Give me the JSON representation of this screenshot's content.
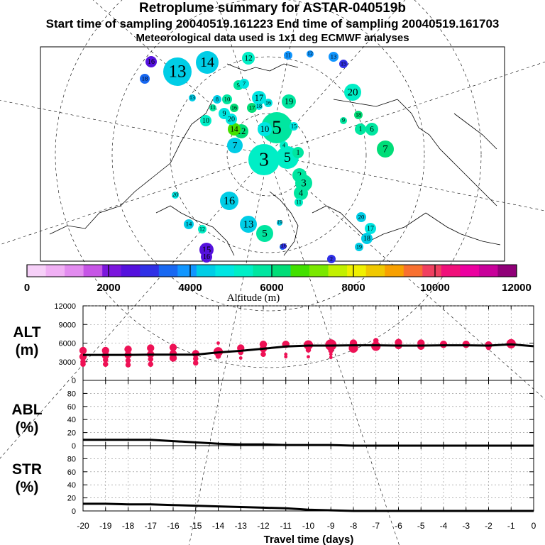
{
  "header": {
    "title": "Retroplume summary for ASTAR-040519b",
    "sampling": "Start time of sampling 20040519.161223     End time of sampling 20040519.161703",
    "met": "Meteorological data used is 1x1 deg ECMWF analyses"
  },
  "chart_data": [
    {
      "type": "scatter",
      "name": "retroplume-map",
      "description_labels": "cluster markers labeled with travel day",
      "clusters": [
        {
          "day": 14,
          "alt": 4600,
          "size": 3
        },
        {
          "day": 13,
          "alt": 4500,
          "size": 1
        },
        {
          "day": 12,
          "alt": 5600,
          "size": 2
        },
        {
          "day": 11,
          "alt": 4300,
          "size": 0
        },
        {
          "day": 12,
          "alt": 4200,
          "size": 0
        },
        {
          "day": 13,
          "alt": 4200,
          "size": 0
        },
        {
          "day": 15,
          "alt": 3000,
          "size": 1
        },
        {
          "day": 16,
          "alt": 2600,
          "size": 1
        },
        {
          "day": 18,
          "alt": 3600,
          "size": 1
        },
        {
          "day": 13,
          "alt": 4800,
          "size": 2
        },
        {
          "day": 9,
          "alt": 6000,
          "size": 0
        },
        {
          "day": 7,
          "alt": 5000,
          "size": 0
        },
        {
          "day": 8,
          "alt": 4600,
          "size": 0
        },
        {
          "day": 10,
          "alt": 6400,
          "size": 1
        },
        {
          "day": 11,
          "alt": 6300,
          "size": 1
        },
        {
          "day": 16,
          "alt": 6600,
          "size": 0
        },
        {
          "day": 17,
          "alt": 6800,
          "size": 0
        },
        {
          "day": 10,
          "alt": 5800,
          "size": 1
        },
        {
          "day": 17,
          "alt": 5400,
          "size": 2
        },
        {
          "day": 19,
          "alt": 6400,
          "size": 0
        },
        {
          "day": 20,
          "alt": 5500,
          "size": 0
        },
        {
          "day": 18,
          "alt": 6700,
          "size": 1
        },
        {
          "day": 9,
          "alt": 6200,
          "size": 3
        },
        {
          "day": 1,
          "alt": 6300,
          "size": 0
        },
        {
          "day": 6,
          "alt": 6200,
          "size": 1
        },
        {
          "day": 7,
          "alt": 6700,
          "size": 1
        },
        {
          "day": 5,
          "alt": 6300,
          "size": 1
        },
        {
          "day": 10,
          "alt": 5200,
          "size": 1
        },
        {
          "day": 12,
          "alt": 6500,
          "size": 0
        },
        {
          "day": 14,
          "alt": 7200,
          "size": 0
        },
        {
          "day": 15,
          "alt": 5300,
          "size": 0
        },
        {
          "day": 18,
          "alt": 5000,
          "size": 0
        },
        {
          "day": 16,
          "alt": 5200,
          "size": 1
        },
        {
          "day": 9,
          "alt": 5300,
          "size": 1
        },
        {
          "day": 20,
          "alt": 5400,
          "size": 2
        },
        {
          "day": 7,
          "alt": 4700,
          "size": 3
        },
        {
          "day": 3,
          "alt": 5500,
          "size": 3
        },
        {
          "day": 5,
          "alt": 5800,
          "size": 0
        },
        {
          "day": 4,
          "alt": 5900,
          "size": 1
        },
        {
          "day": 1,
          "alt": 6200,
          "size": 2
        },
        {
          "day": 2,
          "alt": 6200,
          "size": 0
        },
        {
          "day": 3,
          "alt": 6000,
          "size": 1
        },
        {
          "day": 4,
          "alt": 6000,
          "size": 0
        },
        {
          "day": 11,
          "alt": 5700,
          "size": 2
        },
        {
          "day": 16,
          "alt": 4700,
          "size": 0
        },
        {
          "day": 20,
          "alt": 5300,
          "size": 0
        },
        {
          "day": 14,
          "alt": 4800,
          "size": 0
        },
        {
          "day": 12,
          "alt": 5600,
          "size": 2
        },
        {
          "day": 13,
          "alt": 4600,
          "size": 2
        },
        {
          "day": 5,
          "alt": 6400,
          "size": 0
        },
        {
          "day": 19,
          "alt": 4600,
          "size": 1
        },
        {
          "day": 20,
          "alt": 4600,
          "size": 0
        },
        {
          "day": 17,
          "alt": 5000,
          "size": 1
        },
        {
          "day": 18,
          "alt": 4900,
          "size": 1
        },
        {
          "day": 19,
          "alt": 4700,
          "size": 1
        },
        {
          "day": 14,
          "alt": 3500,
          "size": 0
        },
        {
          "day": 16,
          "alt": 3200,
          "size": 0
        },
        {
          "day": 2,
          "alt": 3300,
          "size": 0
        },
        {
          "day": 15,
          "alt": 2700,
          "size": 1
        },
        {
          "day": 16,
          "alt": 2900,
          "size": 1
        }
      ]
    },
    {
      "type": "colorbar",
      "name": "altitude-colorbar",
      "xlabel": "Altitude (m)",
      "range": [
        0,
        12000
      ],
      "step": 500,
      "tick_labels": [
        "0",
        "2000",
        "4000",
        "6000",
        "8000",
        "10000",
        "12000"
      ],
      "colors": [
        "#f6d0f8",
        "#f0b0f4",
        "#e28cef",
        "#c655e6",
        "#7b16dd",
        "#5511dd",
        "#3030e6",
        "#1868f1",
        "#1096ff",
        "#00cde6",
        "#00e6e2",
        "#00eec6",
        "#00e6a0",
        "#00dd78",
        "#42e000",
        "#7ae800",
        "#c2f000",
        "#f0f000",
        "#f0c800",
        "#f8a000",
        "#f87030",
        "#f04060",
        "#f0107a",
        "#ec00a0",
        "#c8009a",
        "#900078"
      ]
    },
    {
      "type": "line",
      "name": "alt-panel",
      "label_line1": "ALT",
      "label_line2": "(m)",
      "ylim": [
        0,
        12000
      ],
      "yticks": [
        "0",
        "3000",
        "6000",
        "9000",
        "12000"
      ],
      "x": [
        -20,
        -19,
        -18,
        -17,
        -16,
        -15,
        -14,
        -13,
        -12,
        -11,
        -10,
        -9,
        -8,
        -7,
        -6,
        -5,
        -4,
        -3,
        -2,
        -1,
        0
      ],
      "values": [
        4100,
        4100,
        4100,
        4150,
        4150,
        4150,
        4500,
        4750,
        5100,
        5450,
        5600,
        5600,
        5650,
        5650,
        5600,
        5600,
        5650,
        5650,
        5600,
        5800,
        5500
      ],
      "dots": [
        {
          "x": -20,
          "y": 4800,
          "s": 3
        },
        {
          "x": -20,
          "y": 3800,
          "s": 3
        },
        {
          "x": -20,
          "y": 3000,
          "s": 2
        },
        {
          "x": -20,
          "y": 2600,
          "s": 2
        },
        {
          "x": -19,
          "y": 4800,
          "s": 3
        },
        {
          "x": -19,
          "y": 4000,
          "s": 3
        },
        {
          "x": -19,
          "y": 3300,
          "s": 2
        },
        {
          "x": -19,
          "y": 2600,
          "s": 2
        },
        {
          "x": -18,
          "y": 5000,
          "s": 3
        },
        {
          "x": -18,
          "y": 4100,
          "s": 3
        },
        {
          "x": -18,
          "y": 3200,
          "s": 2
        },
        {
          "x": -18,
          "y": 2500,
          "s": 2
        },
        {
          "x": -17,
          "y": 5200,
          "s": 3
        },
        {
          "x": -17,
          "y": 4200,
          "s": 3
        },
        {
          "x": -17,
          "y": 3400,
          "s": 2
        },
        {
          "x": -17,
          "y": 2600,
          "s": 2
        },
        {
          "x": -16,
          "y": 5300,
          "s": 3
        },
        {
          "x": -16,
          "y": 4300,
          "s": 3
        },
        {
          "x": -16,
          "y": 3600,
          "s": 3
        },
        {
          "x": -15,
          "y": 4300,
          "s": 3
        },
        {
          "x": -15,
          "y": 3500,
          "s": 2
        },
        {
          "x": -15,
          "y": 2800,
          "s": 2
        },
        {
          "x": -14,
          "y": 6000,
          "s": 1
        },
        {
          "x": -14,
          "y": 4600,
          "s": 4
        },
        {
          "x": -14,
          "y": 3900,
          "s": 2
        },
        {
          "x": -13,
          "y": 5200,
          "s": 3
        },
        {
          "x": -13,
          "y": 4500,
          "s": 2
        },
        {
          "x": -13,
          "y": 3600,
          "s": 1
        },
        {
          "x": -12,
          "y": 5800,
          "s": 3
        },
        {
          "x": -12,
          "y": 5100,
          "s": 3
        },
        {
          "x": -12,
          "y": 4200,
          "s": 2
        },
        {
          "x": -11,
          "y": 5800,
          "s": 3
        },
        {
          "x": -11,
          "y": 4200,
          "s": 1
        },
        {
          "x": -11,
          "y": 3800,
          "s": 1
        },
        {
          "x": -10,
          "y": 5700,
          "s": 4
        },
        {
          "x": -10,
          "y": 4900,
          "s": 2
        },
        {
          "x": -10,
          "y": 3800,
          "s": 1
        },
        {
          "x": -9,
          "y": 5700,
          "s": 5
        },
        {
          "x": -9,
          "y": 4800,
          "s": 2
        },
        {
          "x": -9,
          "y": 4200,
          "s": 1
        },
        {
          "x": -9,
          "y": 3700,
          "s": 1
        },
        {
          "x": -8,
          "y": 6000,
          "s": 3
        },
        {
          "x": -8,
          "y": 5200,
          "s": 4
        },
        {
          "x": -7,
          "y": 6400,
          "s": 2
        },
        {
          "x": -7,
          "y": 5500,
          "s": 4
        },
        {
          "x": -6,
          "y": 6100,
          "s": 3
        },
        {
          "x": -6,
          "y": 5600,
          "s": 3
        },
        {
          "x": -5,
          "y": 6000,
          "s": 3
        },
        {
          "x": -5,
          "y": 5500,
          "s": 3
        },
        {
          "x": -4,
          "y": 5800,
          "s": 3
        },
        {
          "x": -3,
          "y": 5800,
          "s": 3
        },
        {
          "x": -2,
          "y": 5700,
          "s": 3
        },
        {
          "x": -2,
          "y": 5300,
          "s": 2
        },
        {
          "x": -1,
          "y": 5900,
          "s": 4
        }
      ]
    },
    {
      "type": "line",
      "name": "abl-panel",
      "label_line1": "ABL",
      "label_line2": "(%)",
      "ylim": [
        0,
        100
      ],
      "yticks": [
        "0",
        "20",
        "40",
        "60",
        "80"
      ],
      "x": [
        -20,
        -19,
        -18,
        -17,
        -16,
        -15,
        -14,
        -13,
        -12,
        -11,
        -10,
        -9,
        -8,
        -7,
        -6,
        -5,
        -4,
        -3,
        -2,
        -1,
        0
      ],
      "values": [
        9,
        9,
        9,
        9,
        7,
        5,
        3,
        2,
        2,
        1,
        1,
        1,
        0,
        0,
        0,
        0,
        0,
        0,
        0,
        0,
        0
      ]
    },
    {
      "type": "line",
      "name": "str-panel",
      "label_line1": "STR",
      "label_line2": "(%)",
      "ylim": [
        0,
        100
      ],
      "yticks": [
        "0",
        "20",
        "40",
        "60",
        "80"
      ],
      "x": [
        -20,
        -19,
        -18,
        -17,
        -16,
        -15,
        -14,
        -13,
        -12,
        -11,
        -10,
        -9,
        -8,
        -7,
        -6,
        -5,
        -4,
        -3,
        -2,
        -1,
        0
      ],
      "values": [
        11,
        11,
        10,
        10,
        9,
        8,
        7,
        6,
        5,
        4,
        2,
        1,
        0,
        0,
        0,
        0,
        0,
        0,
        0,
        0,
        0
      ]
    },
    {
      "type": "axis",
      "name": "travel-time-axis",
      "xlabel": "Travel time (days)",
      "xlim": [
        -20,
        0
      ],
      "tick_labels": [
        "-20",
        "-19",
        "-18",
        "-17",
        "-16",
        "-15",
        "-14",
        "-13",
        "-12",
        "-11",
        "-10",
        "-9",
        "-8",
        "-7",
        "-6",
        "-5",
        "-4",
        "-3",
        "-2",
        "-1",
        "0"
      ]
    }
  ]
}
